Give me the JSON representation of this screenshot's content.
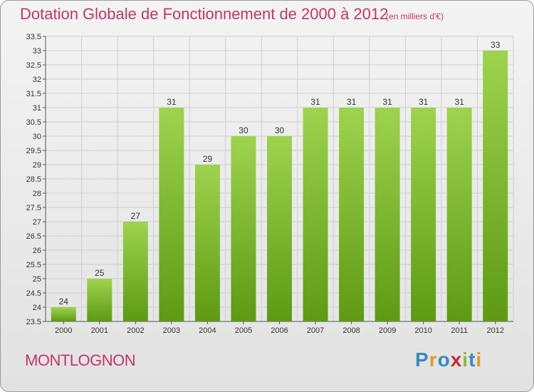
{
  "header": {
    "title": "Dotation Globale de Fonctionnement de 2000 à 2012",
    "unit": "(en milliers d'€)"
  },
  "footer": {
    "commune": "MONTLOGNON",
    "logo_text": "Proxiti",
    "logo_letter_colors": [
      "#3a87c6",
      "#e39a1f",
      "#3a87c6",
      "#cc2a2a",
      "#8bbb2e",
      "#3a87c6",
      "#e39a1f"
    ]
  },
  "colors": {
    "bar_top": "#9ed34e",
    "bar_bottom": "#5d9a12",
    "grid": "#cfcfcf",
    "title": "#c1366a"
  },
  "chart_data": {
    "type": "bar",
    "title": "Dotation Globale de Fonctionnement de 2000 à 2012",
    "subtitle": "(en milliers d'€)",
    "xlabel": "",
    "ylabel": "",
    "categories": [
      "2000",
      "2001",
      "2002",
      "2003",
      "2004",
      "2005",
      "2006",
      "2007",
      "2008",
      "2009",
      "2010",
      "2011",
      "2012"
    ],
    "values": [
      24,
      25,
      27,
      31,
      29,
      30,
      30,
      31,
      31,
      31,
      31,
      31,
      33
    ],
    "data_labels": [
      "24",
      "25",
      "27",
      "31",
      "29",
      "30",
      "30",
      "31",
      "31",
      "31",
      "31",
      "31",
      "33"
    ],
    "ylim": [
      23.5,
      33.5
    ],
    "yticks": [
      23.5,
      24,
      24.5,
      25,
      25.5,
      26,
      26.5,
      27,
      27.5,
      28,
      28.5,
      29,
      29.5,
      30,
      30.5,
      31,
      31.5,
      32,
      32.5,
      33,
      33.5
    ],
    "ytick_labels": [
      "23.5",
      "24",
      "24.5",
      "25",
      "25.5",
      "26",
      "26.5",
      "27",
      "27.5",
      "28",
      "28.5",
      "29",
      "29.5",
      "30",
      "30.5",
      "31",
      "31.5",
      "32",
      "32.5",
      "33",
      "33.5"
    ],
    "grid": true,
    "legend": "none"
  }
}
